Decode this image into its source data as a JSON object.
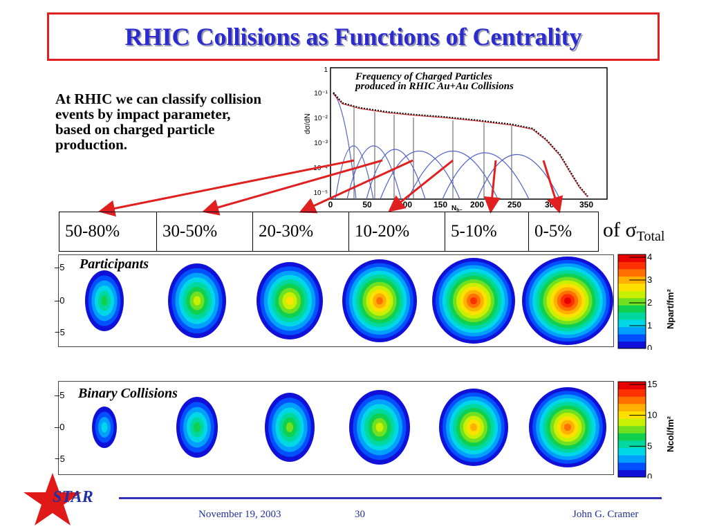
{
  "title": "RHIC Collisions as Functions of Centrality",
  "intro_text": "At RHIC we can classify collision events by impact parameter, based on charged particle production.",
  "histogram": {
    "caption_line1": "Frequency of Charged Particles",
    "caption_line2": "produced in RHIC Au+Au Collisions",
    "ylabel": "dσ/dN",
    "xlabel": "N",
    "xlabel_sub": "h−",
    "y_ticks": [
      "1",
      "10⁻¹",
      "10⁻²",
      "10⁻³",
      "10⁻⁴",
      "10⁻⁵"
    ],
    "x_ticks": [
      "0",
      "50",
      "100",
      "150",
      "200",
      "250",
      "300",
      "350"
    ]
  },
  "centrality_bins": [
    "50-80%",
    "30-50%",
    "20-30%",
    "10-20%",
    "5-10%",
    "0-5%"
  ],
  "of_total": {
    "prefix": "of ",
    "sigma": "σ",
    "sub": "Total"
  },
  "participants_panel": {
    "label": "Participants",
    "y_ticks": [
      "5",
      "0",
      "−5"
    ],
    "colorbar_label": "Npart/fm²",
    "colorbar_ticks": [
      "4",
      "3",
      "2",
      "1",
      "0"
    ],
    "max_levels": [
      0.42,
      0.55,
      0.7,
      0.82,
      0.9,
      0.97
    ]
  },
  "binary_panel": {
    "label": "Binary Collisions",
    "y_ticks": [
      "5",
      "0",
      "−5"
    ],
    "colorbar_label": "Ncol/fm²",
    "colorbar_ticks": [
      "15",
      "10",
      "5",
      "0"
    ],
    "max_levels": [
      0.22,
      0.38,
      0.5,
      0.62,
      0.74,
      0.85
    ]
  },
  "footer": {
    "logo": "STAR",
    "date": "November 19, 2003",
    "page": "30",
    "author": "John G. Cramer"
  },
  "colors": {
    "title": "#2b2bd0",
    "border": "#e02020",
    "arrow": "#e02020",
    "footer": "#2030a0"
  }
}
